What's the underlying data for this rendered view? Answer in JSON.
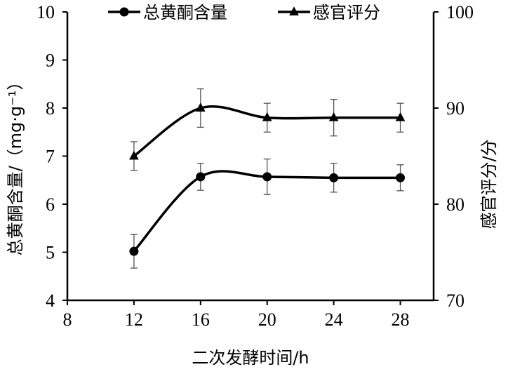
{
  "chart_data": {
    "type": "line",
    "title": "",
    "xlabel": "二次发酵时间/h",
    "ylabel_left": "总黄酮含量/（mg·g⁻¹）",
    "ylabel_right": "感官评分/分",
    "x_ticks": [
      8,
      12,
      16,
      20,
      24,
      28
    ],
    "xlim": [
      8,
      30
    ],
    "ylim_left": [
      4,
      10
    ],
    "yticks_left": [
      4,
      5,
      6,
      7,
      8,
      9,
      10
    ],
    "ylim_right": [
      70,
      100
    ],
    "yticks_right": [
      70,
      80,
      90,
      100
    ],
    "legend_position": "top",
    "grid": false,
    "x": [
      12,
      16,
      20,
      24,
      28
    ],
    "series": [
      {
        "name": "总黄酮含量",
        "axis": "left",
        "marker": "circle",
        "values": [
          5.02,
          6.57,
          6.57,
          6.55,
          6.55
        ],
        "errors": [
          0.35,
          0.28,
          0.37,
          0.3,
          0.27
        ]
      },
      {
        "name": "感官评分",
        "axis": "right",
        "marker": "triangle",
        "values": [
          85,
          90,
          89,
          89,
          89
        ],
        "errors": [
          1.5,
          2.0,
          1.5,
          1.9,
          1.5
        ]
      }
    ]
  }
}
